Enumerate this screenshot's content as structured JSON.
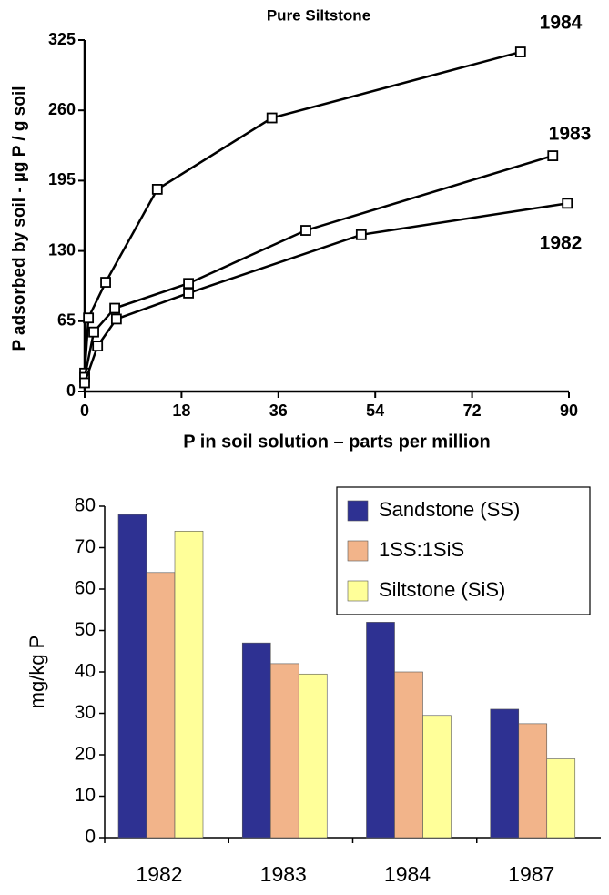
{
  "chart_data": [
    {
      "type": "line",
      "title": "Pure Siltstone",
      "y_label": "P adsorbed by soil - µg P / g soil",
      "x_label": "P in soil solution – parts per million",
      "xlim": [
        0,
        90
      ],
      "xticks": [
        0,
        18,
        36,
        54,
        72,
        90
      ],
      "ylim": [
        0,
        325
      ],
      "yticks": [
        0,
        65,
        130,
        195,
        260,
        325
      ],
      "series": [
        {
          "name": "1984",
          "color": "#000000",
          "x": [
            0,
            0.7,
            3.9,
            13.5,
            34.8,
            81
          ],
          "values": [
            17,
            68,
            101,
            187,
            253,
            314
          ]
        },
        {
          "name": "1983",
          "color": "#000000",
          "x": [
            0,
            1.7,
            5.6,
            19.3,
            41.1,
            87
          ],
          "values": [
            13,
            55,
            77,
            100,
            149,
            218
          ]
        },
        {
          "name": "1982",
          "color": "#000000",
          "x": [
            0,
            2.4,
            5.9,
            19.3,
            51.4,
            89.7
          ],
          "values": [
            8,
            42,
            67,
            91,
            145,
            174
          ]
        }
      ]
    },
    {
      "type": "bar",
      "y_label": "mg/kg P",
      "categories": [
        "1982",
        "1983",
        "1984",
        "1987"
      ],
      "ylim": [
        0,
        80
      ],
      "yticks": [
        0,
        10,
        20,
        30,
        40,
        50,
        60,
        70,
        80
      ],
      "legend": "top-right",
      "series": [
        {
          "name": "Sandstone (SS)",
          "color": "#2e3192",
          "values": [
            78,
            47,
            52,
            31
          ]
        },
        {
          "name": "1SS:1SiS",
          "color": "#f2b48a",
          "values": [
            64,
            42,
            40,
            27.5
          ]
        },
        {
          "name": "Siltstone (SiS)",
          "color": "#ffff99",
          "values": [
            74,
            39.5,
            29.5,
            19
          ]
        }
      ]
    }
  ]
}
